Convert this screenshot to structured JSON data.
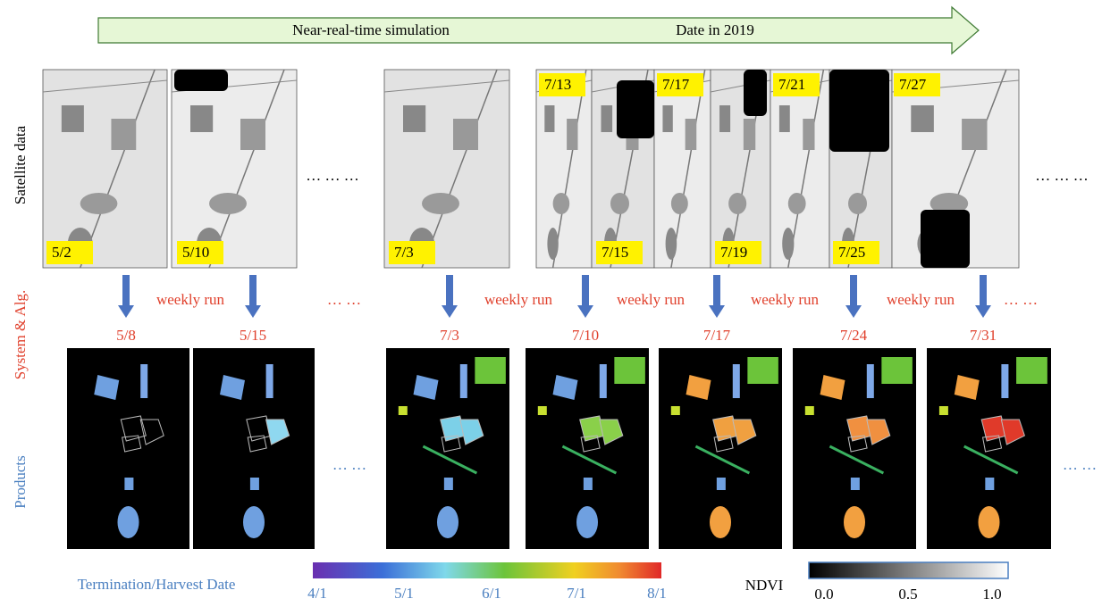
{
  "timeline": {
    "label": "Near-real-time simulation",
    "date_label": "Date in 2019"
  },
  "rows": {
    "satellite": "Satellite data",
    "system": "System & Alg.",
    "products": "Products"
  },
  "satellite_dates": [
    "5/2",
    "5/10",
    "7/3",
    "7/13",
    "7/15",
    "7/17",
    "7/19",
    "7/21",
    "7/25",
    "7/27"
  ],
  "ellipsis": {
    "satellite": "… … …",
    "system": "… …",
    "products": "… …"
  },
  "weekly_run": "weekly run",
  "run_dates": [
    "5/8",
    "5/15",
    "7/3",
    "7/10",
    "7/17",
    "7/24",
    "7/31"
  ],
  "legend": {
    "harvest": {
      "title": "Termination/Harvest Date",
      "ticks": [
        "4/1",
        "5/1",
        "6/1",
        "7/1",
        "8/1"
      ]
    },
    "ndvi": {
      "title": "NDVI",
      "ticks": [
        "0.0",
        "0.5",
        "1.0"
      ]
    }
  }
}
